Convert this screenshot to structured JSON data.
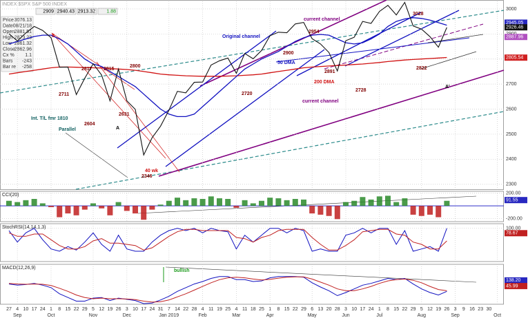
{
  "header": {
    "title": "INDEX $SPX S&P 500 INDEX",
    "quotes": [
      {
        "value": 2909,
        "color": "#000"
      },
      {
        "value": 2940.43,
        "color": "#000"
      },
      {
        "value": 2913.32,
        "color": "#000"
      },
      {
        "value": 1.88,
        "color": "#1a9a1a"
      }
    ],
    "info": [
      [
        "Price",
        3076.13
      ],
      [
        "Date",
        "08/21/18"
      ],
      [
        "Open",
        2881.51
      ],
      [
        "High",
        2873.23
      ],
      [
        "Low",
        2861.32
      ],
      [
        "Close",
        2862.96
      ],
      [
        "Cx %",
        1.1
      ],
      [
        "Bars",
        -243
      ],
      [
        "Bar re",
        -258
      ]
    ]
  },
  "chart_data": [
    {
      "type": "line",
      "categories": [
        27,
        4,
        10,
        17,
        24,
        1,
        8,
        15,
        22,
        29,
        5,
        12,
        19,
        26,
        3,
        10,
        17,
        24,
        31,
        7,
        14,
        22,
        28,
        4,
        11,
        19,
        25,
        4,
        11,
        18,
        25,
        1,
        8,
        15,
        22,
        29,
        6,
        13,
        20,
        28,
        3,
        10,
        17,
        24,
        1,
        8,
        15,
        22,
        29,
        5,
        12,
        19,
        26,
        3,
        9,
        16,
        23,
        30,
        null
      ],
      "months": [
        null,
        "Sep",
        null,
        null,
        null,
        "Oct",
        null,
        null,
        null,
        null,
        "Nov",
        null,
        null,
        null,
        "Dec",
        null,
        null,
        null,
        null,
        "Jan 2019",
        null,
        null,
        null,
        "Feb",
        null,
        null,
        null,
        "Mar",
        null,
        null,
        null,
        "Apr",
        null,
        null,
        null,
        null,
        "May",
        null,
        null,
        null,
        "Jun",
        null,
        null,
        null,
        "Jul",
        null,
        null,
        null,
        null,
        "Aug",
        null,
        null,
        null,
        "Sep",
        null,
        null,
        null,
        null,
        "Oct"
      ],
      "series": [
        {
          "color": "#111111",
          "values": [
            2901,
            2872,
            2904,
            2930,
            2914,
            2885,
            2767,
            2768,
            2658,
            2723,
            2781,
            2736,
            2633,
            2760,
            2633,
            2599,
            2417,
            2486,
            2532,
            2596,
            2671,
            2665,
            2707,
            2708,
            2776,
            2793,
            2804,
            2743,
            2822,
            2801,
            2834,
            2893,
            2907,
            2905,
            2940,
            2946,
            2881,
            2860,
            2826,
            2752,
            2873,
            2887,
            2950,
            2942,
            2990,
            3014,
            2976,
            3026,
            2932,
            2919,
            2889,
            2847,
            2926,
            null,
            null,
            null,
            null,
            null,
            null
          ]
        }
      ],
      "overlays": [
        {
          "color": "#d01010",
          "values": [
            2740,
            2745,
            2750,
            2755,
            2760,
            2765,
            2768,
            2768,
            2767,
            2766,
            2765,
            2764,
            2762,
            2760,
            2758,
            2755,
            2750,
            2745,
            2740,
            2737,
            2735,
            2733,
            2732,
            2731,
            2731,
            2731,
            2732,
            2733,
            2735,
            2737,
            2740,
            2745,
            2750,
            2755,
            2760,
            2765,
            2768,
            2770,
            2772,
            2774,
            2776,
            2778,
            2780,
            2783,
            2786,
            2790,
            2793,
            2796,
            2798,
            2800,
            2802,
            2804,
            2806,
            null,
            null,
            null,
            null,
            null,
            null
          ]
        },
        {
          "color": "#1010c0",
          "values": [
            2860,
            2870,
            2880,
            2890,
            2895,
            2895,
            2880,
            2860,
            2830,
            2800,
            2780,
            2770,
            2750,
            2730,
            2710,
            2690,
            2660,
            2630,
            2600,
            2580,
            2570,
            2570,
            2580,
            2610,
            2640,
            2670,
            2700,
            2730,
            2760,
            2780,
            2800,
            2815,
            2830,
            2850,
            2870,
            2885,
            2895,
            2898,
            2895,
            2880,
            2865,
            2860,
            2865,
            2880,
            2900,
            2930,
            2950,
            2960,
            2965,
            2962,
            2955,
            2945,
            2935,
            null,
            null,
            null,
            null,
            null,
            null
          ]
        }
      ],
      "ylim": [
        2280,
        3030
      ],
      "yticks": [
        2300,
        2400,
        2500,
        2600,
        2700,
        2800,
        2900,
        3000
      ],
      "grid": true,
      "price_labels": [
        {
          "value": 2945.05,
          "label": "2945.05",
          "color": "#2828c0"
        },
        {
          "value": 2926.46,
          "label": "2926.46",
          "color": "#111111"
        },
        {
          "value": 2887.96,
          "label": "2887.96",
          "color": "#b050c0"
        },
        {
          "value": 2805.54,
          "label": "2805.54",
          "color": "#d02020"
        }
      ],
      "annotations": [
        {
          "text": "current channel",
          "color": "#800080"
        },
        {
          "text": "Original channel",
          "color": "#1010c0"
        },
        {
          "text": "Int. T/L fmr 1810",
          "color": "#106060"
        },
        {
          "text": "Parallel",
          "color": "#106060"
        },
        {
          "text": "A",
          "color": "#000"
        },
        {
          "text": "A'",
          "color": "#000"
        },
        {
          "text": "5",
          "color": "#d01010"
        },
        {
          "text": "2817",
          "color": "#800000"
        },
        {
          "text": "2815",
          "color": "#800000"
        },
        {
          "text": "2800",
          "color": "#800000"
        },
        {
          "text": "2711",
          "color": "#800000"
        },
        {
          "text": "2631",
          "color": "#800000"
        },
        {
          "text": "2604",
          "color": "#800000"
        },
        {
          "text": "40 wk",
          "color": "#d01010"
        },
        {
          "text": "2346",
          "color": "#800000"
        },
        {
          "text": "2954",
          "color": "#800000"
        },
        {
          "text": "3028",
          "color": "#800000"
        },
        {
          "text": "2822",
          "color": "#800000"
        },
        {
          "text": "2728",
          "color": "#800000"
        },
        {
          "text": "200 DMA",
          "color": "#d01010"
        },
        {
          "text": "50 DMA",
          "color": "#1010c0"
        },
        {
          "text": "2891",
          "color": "#800000"
        },
        {
          "text": "current channel",
          "color": "#800080"
        },
        {
          "text": "2720",
          "color": "#800000"
        },
        {
          "text": "2900",
          "color": "#800000"
        }
      ]
    },
    {
      "type": "bar",
      "title": "CCI(20)",
      "pos_color": "#2a8a2a",
      "neg_color": "#c02020",
      "values": [
        80,
        60,
        90,
        110,
        40,
        -20,
        -180,
        -120,
        -150,
        -60,
        40,
        -40,
        -150,
        60,
        -80,
        -120,
        -220,
        -60,
        20,
        80,
        130,
        90,
        120,
        110,
        150,
        120,
        110,
        -30,
        90,
        40,
        80,
        130,
        120,
        90,
        110,
        100,
        -120,
        -140,
        -160,
        -210,
        60,
        80,
        140,
        100,
        150,
        160,
        60,
        120,
        -140,
        -160,
        -140,
        -180,
        80,
        null,
        null,
        null,
        null,
        null,
        null
      ],
      "ylim": [
        -250,
        230
      ],
      "yticks": [
        {
          "value": 200,
          "label": "200.00"
        },
        {
          "value": -200,
          "label": "-200.00"
        }
      ],
      "grid": true,
      "price_labels": [
        {
          "value": 91.55,
          "label": "91.55",
          "color": "#2828c0"
        }
      ]
    },
    {
      "type": "line",
      "title": "StochRSI(14,14,1,3)",
      "series": [
        {
          "color": "#1010c0",
          "values": [
            90,
            40,
            80,
            100,
            50,
            10,
            0,
            20,
            5,
            40,
            80,
            30,
            0,
            70,
            10,
            0,
            0,
            40,
            70,
            90,
            100,
            90,
            100,
            80,
            100,
            90,
            85,
            10,
            70,
            40,
            70,
            100,
            100,
            80,
            100,
            90,
            0,
            10,
            0,
            0,
            70,
            80,
            100,
            80,
            100,
            100,
            30,
            90,
            0,
            10,
            20,
            0,
            100,
            null,
            null,
            null,
            null,
            null,
            null
          ]
        },
        {
          "color": "#c02020",
          "values": [
            80,
            65,
            65,
            75,
            75,
            50,
            25,
            10,
            10,
            20,
            45,
            55,
            35,
            35,
            30,
            25,
            5,
            15,
            40,
            65,
            85,
            95,
            95,
            90,
            90,
            90,
            90,
            60,
            55,
            40,
            60,
            70,
            90,
            95,
            95,
            95,
            60,
            30,
            5,
            5,
            25,
            50,
            85,
            90,
            95,
            95,
            75,
            70,
            40,
            30,
            10,
            10,
            45,
            null,
            null,
            null,
            null,
            null,
            null
          ]
        }
      ],
      "ylim": [
        -45,
        120
      ],
      "yticks": [
        {
          "value": 100,
          "label": "100.00"
        }
      ],
      "grid": true,
      "price_labels": [
        {
          "value": 78.67,
          "label": "78.67",
          "color": "#c02020"
        }
      ]
    },
    {
      "type": "line",
      "title": "MACD(12,26,9)",
      "series": [
        {
          "color": "#1010c0",
          "values": [
            80,
            60,
            70,
            90,
            60,
            20,
            -80,
            -140,
            -200,
            -200,
            -150,
            -140,
            -190,
            -150,
            -170,
            -190,
            -240,
            -230,
            -180,
            -120,
            -40,
            20,
            80,
            120,
            170,
            200,
            200,
            150,
            150,
            120,
            130,
            180,
            200,
            200,
            200,
            190,
            100,
            30,
            -30,
            -110,
            -60,
            0,
            60,
            90,
            130,
            170,
            150,
            170,
            80,
            0,
            -60,
            -100,
            -40,
            null,
            null,
            null,
            null,
            null,
            null
          ]
        },
        {
          "color": "#c02020",
          "values": [
            90,
            80,
            75,
            80,
            75,
            55,
            10,
            -40,
            -100,
            -140,
            -160,
            -150,
            -160,
            -160,
            -165,
            -175,
            -200,
            -215,
            -210,
            -180,
            -130,
            -80,
            -20,
            40,
            100,
            150,
            180,
            190,
            180,
            160,
            145,
            155,
            175,
            190,
            195,
            195,
            160,
            110,
            60,
            0,
            -30,
            -30,
            0,
            40,
            90,
            130,
            150,
            160,
            140,
            100,
            40,
            -10,
            -30,
            null,
            null,
            null,
            null,
            null,
            null
          ]
        }
      ],
      "ylim": [
        -250,
        400
      ],
      "yticks": [],
      "grid": true,
      "price_labels": [
        {
          "value": 138.2,
          "label": "138.20",
          "color": "#2828c0"
        },
        {
          "value": 45.99,
          "label": "45.99",
          "color": "#c02020"
        }
      ],
      "annotations": [
        {
          "text": "bullish",
          "color": "#1a9a1a"
        }
      ]
    }
  ]
}
